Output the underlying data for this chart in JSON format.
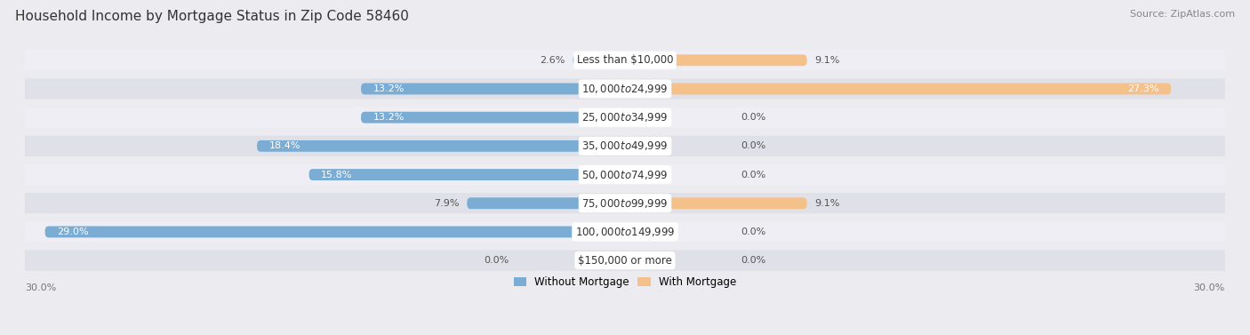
{
  "title": "Household Income by Mortgage Status in Zip Code 58460",
  "source": "Source: ZipAtlas.com",
  "categories": [
    "Less than $10,000",
    "$10,000 to $24,999",
    "$25,000 to $34,999",
    "$35,000 to $49,999",
    "$50,000 to $74,999",
    "$75,000 to $99,999",
    "$100,000 to $149,999",
    "$150,000 or more"
  ],
  "without_mortgage": [
    2.6,
    13.2,
    13.2,
    18.4,
    15.8,
    7.9,
    29.0,
    0.0
  ],
  "with_mortgage": [
    9.1,
    27.3,
    0.0,
    0.0,
    0.0,
    9.1,
    0.0,
    0.0
  ],
  "color_without": "#7BADD4",
  "color_with": "#F5C18A",
  "color_without_light": "#A8CBE8",
  "color_with_light": "#FAD9AF",
  "xlim": 30.0,
  "bg_color": "#EBEBF0",
  "row_bg_color": "#E0E0E8",
  "row_bg_light": "#EEEEF4",
  "title_fontsize": 11,
  "source_fontsize": 8,
  "label_fontsize": 8.5,
  "value_fontsize": 8,
  "axis_tick_fontsize": 8
}
